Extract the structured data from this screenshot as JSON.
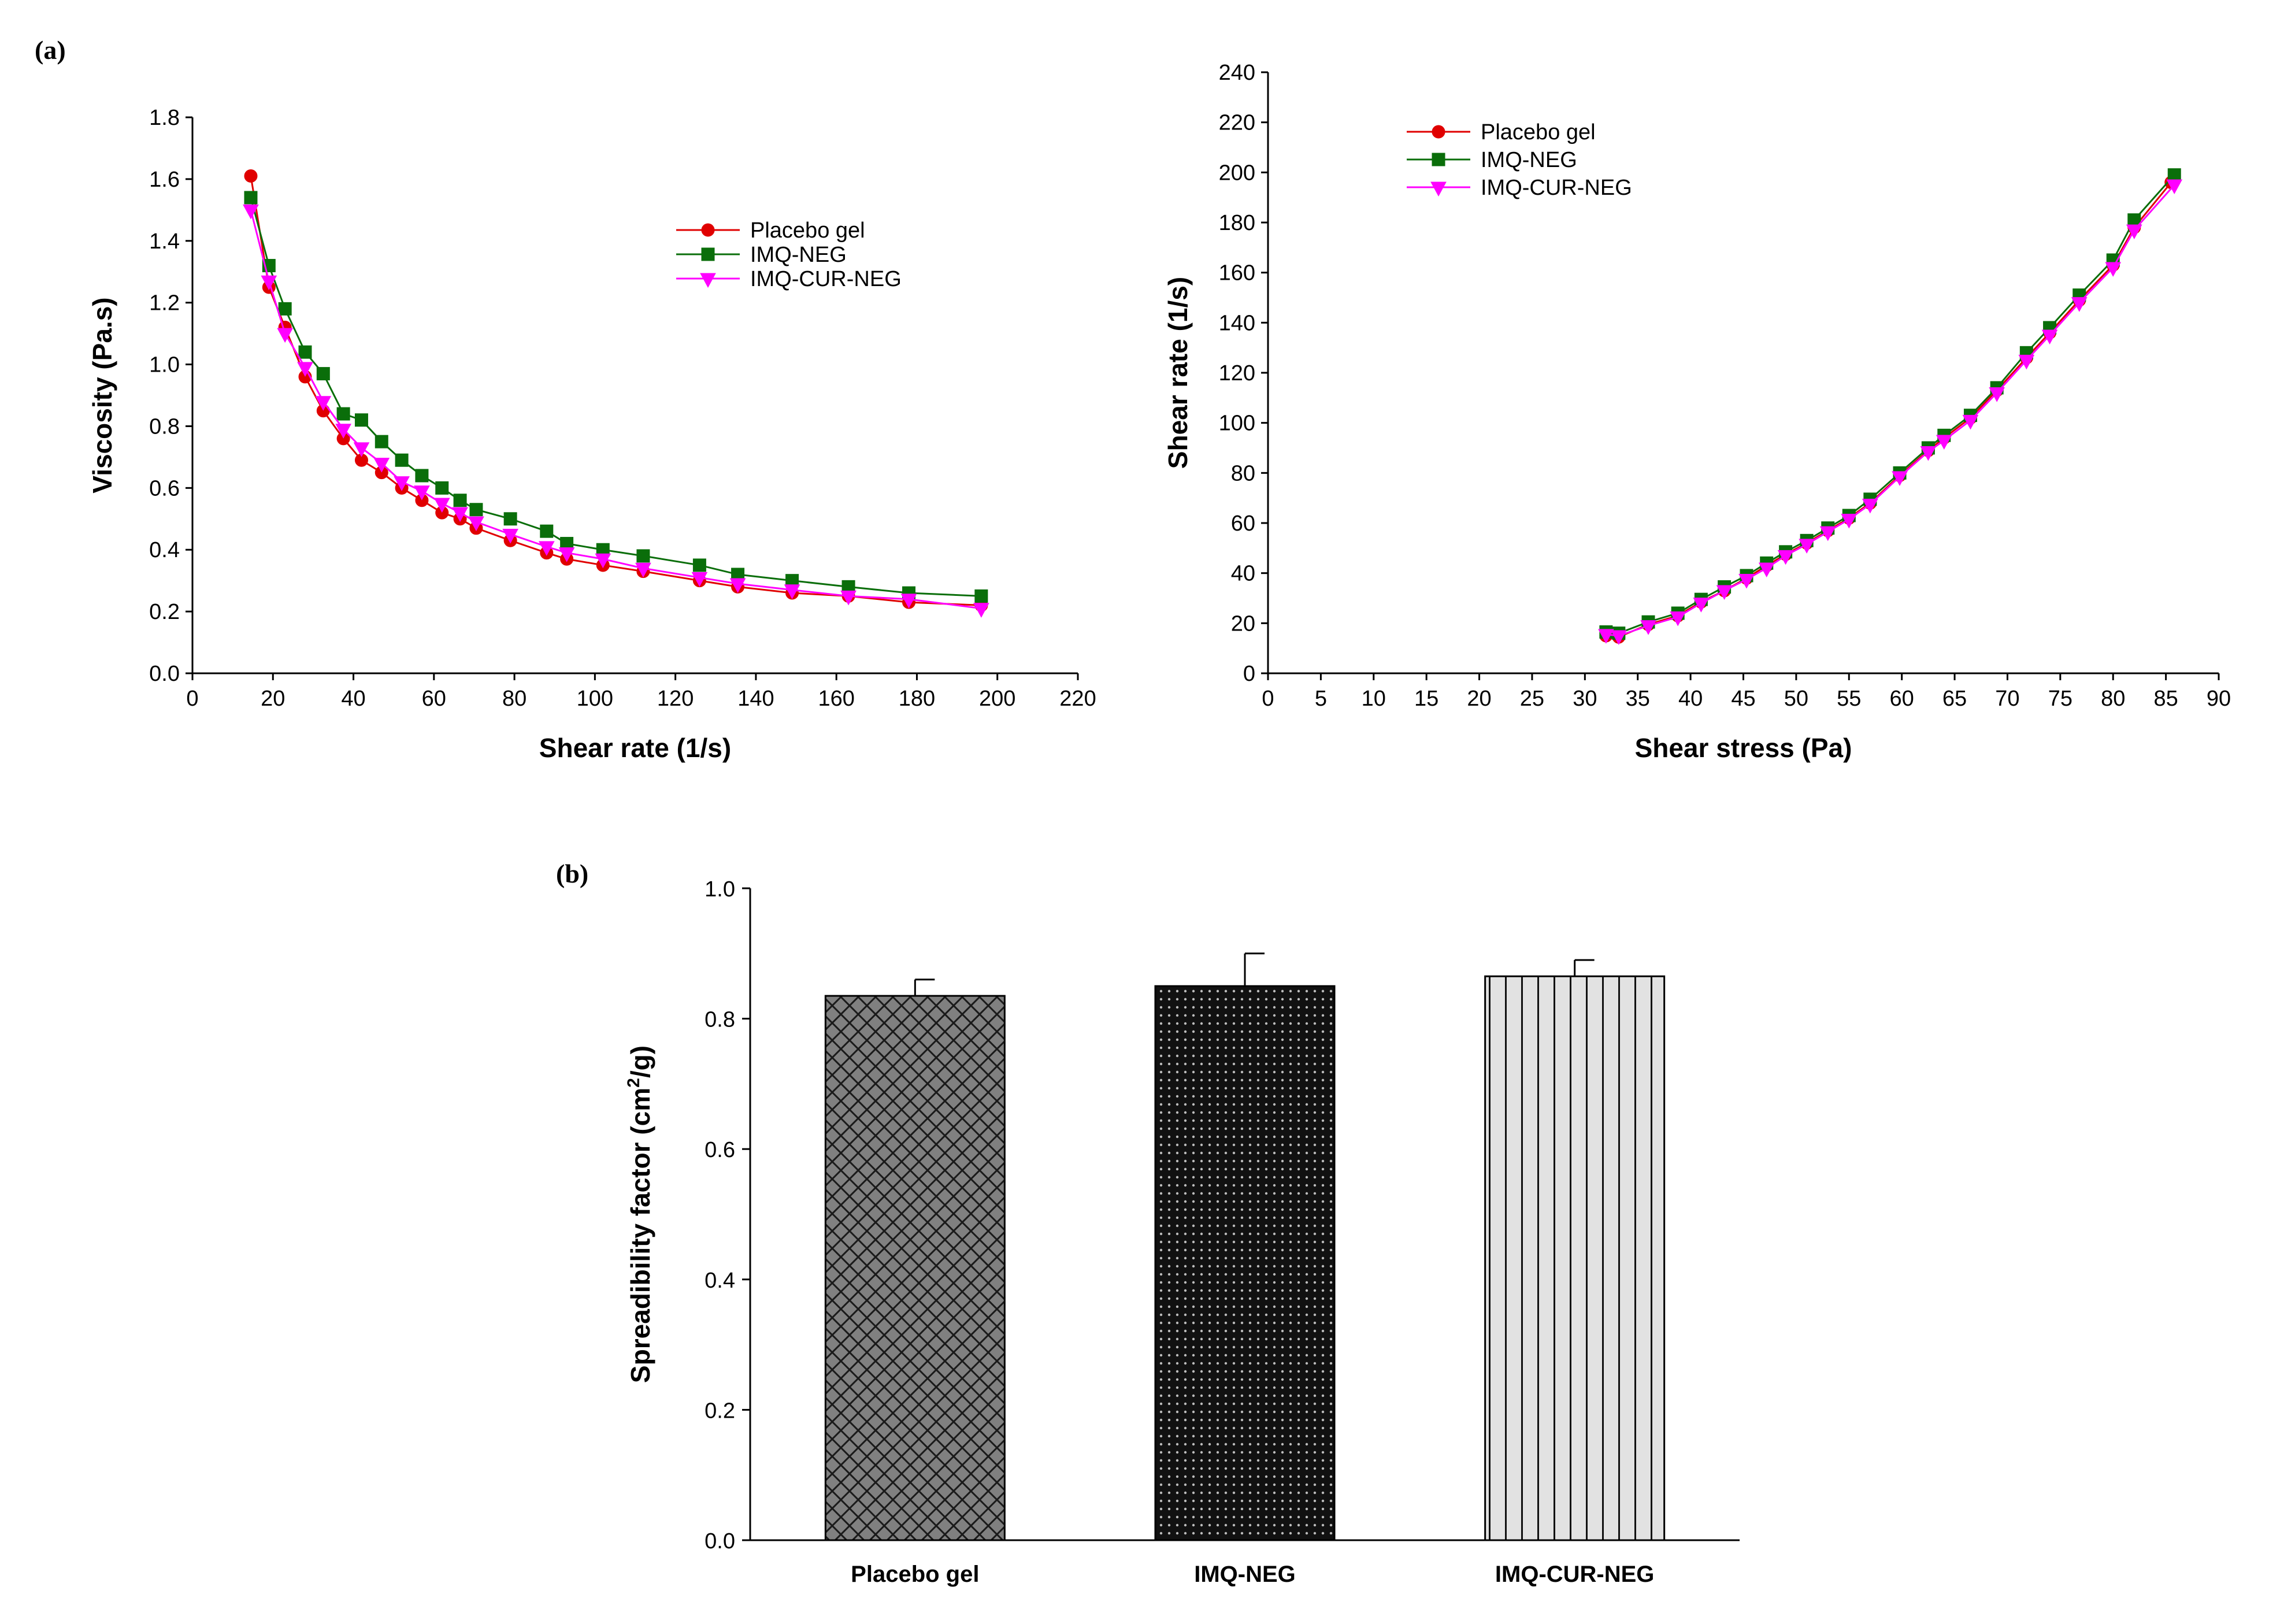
{
  "panel_labels": {
    "a": "(a)",
    "b": "(b)"
  },
  "series_colors": {
    "Placebo gel": "#e00000",
    "IMQ-NEG": "#0a6e0a",
    "IMQ-CUR-NEG": "#ff00ff"
  },
  "chart_data": [
    {
      "id": "viscosity",
      "type": "line",
      "title": "",
      "xlabel": "Shear rate (1/s)",
      "ylabel": "Viscosity (Pa.s)",
      "xlim": [
        0,
        220
      ],
      "ylim": [
        0.0,
        1.8
      ],
      "xticks": [
        0,
        20,
        40,
        60,
        80,
        100,
        120,
        140,
        160,
        180,
        200,
        220
      ],
      "yticks": [
        0.0,
        0.2,
        0.4,
        0.6,
        0.8,
        1.0,
        1.2,
        1.4,
        1.6,
        1.8
      ],
      "ytick_labels": [
        "0.0",
        "0.2",
        "0.4",
        "0.6",
        "0.8",
        "1.0",
        "1.2",
        "1.4",
        "1.6",
        "1.8"
      ],
      "legend_position": "upper-right",
      "series": [
        {
          "name": "Placebo gel",
          "label": " Placebo gel",
          "marker": "circle",
          "color": "#e00000",
          "x": [
            14.5,
            19,
            23,
            28,
            32.5,
            37.5,
            42,
            47,
            52,
            57,
            62,
            66.5,
            70.5,
            79,
            88,
            93,
            102,
            112,
            126,
            135.5,
            149,
            163,
            178,
            196
          ],
          "y": [
            1.61,
            1.25,
            1.12,
            0.96,
            0.85,
            0.76,
            0.69,
            0.65,
            0.6,
            0.56,
            0.52,
            0.5,
            0.47,
            0.43,
            0.39,
            0.37,
            0.35,
            0.33,
            0.3,
            0.28,
            0.26,
            0.25,
            0.23,
            0.22
          ]
        },
        {
          "name": "IMQ-NEG",
          "label": "IMQ-NEG",
          "marker": "square",
          "color": "#0a6e0a",
          "x": [
            14.5,
            19,
            23,
            28,
            32.5,
            37.5,
            42,
            47,
            52,
            57,
            62,
            66.5,
            70.5,
            79,
            88,
            93,
            102,
            112,
            126,
            135.5,
            149,
            163,
            178,
            196
          ],
          "y": [
            1.54,
            1.32,
            1.18,
            1.04,
            0.97,
            0.84,
            0.82,
            0.75,
            0.69,
            0.64,
            0.6,
            0.56,
            0.53,
            0.5,
            0.46,
            0.42,
            0.4,
            0.38,
            0.35,
            0.32,
            0.3,
            0.28,
            0.26,
            0.25
          ]
        },
        {
          "name": "IMQ-CUR-NEG",
          "label": "IMQ-CUR-NEG",
          "marker": "triangle-down",
          "color": "#ff00ff",
          "x": [
            14.5,
            19,
            23,
            28,
            32.5,
            37.5,
            42,
            47,
            52,
            57,
            62,
            66.5,
            70.5,
            79,
            88,
            93,
            102,
            112,
            126,
            135.5,
            149,
            163,
            178,
            196
          ],
          "y": [
            1.5,
            1.27,
            1.1,
            0.99,
            0.88,
            0.79,
            0.73,
            0.68,
            0.62,
            0.59,
            0.55,
            0.52,
            0.49,
            0.45,
            0.41,
            0.39,
            0.37,
            0.34,
            0.31,
            0.29,
            0.27,
            0.25,
            0.24,
            0.21
          ]
        }
      ]
    },
    {
      "id": "flow",
      "type": "line",
      "title": "",
      "xlabel": "Shear stress (Pa)",
      "ylabel": "Shear rate (1/s)",
      "xlim": [
        0,
        90
      ],
      "ylim": [
        0,
        240
      ],
      "xticks": [
        0,
        5,
        10,
        15,
        20,
        25,
        30,
        35,
        40,
        45,
        50,
        55,
        60,
        65,
        70,
        75,
        80,
        85,
        90
      ],
      "yticks": [
        0,
        20,
        40,
        60,
        80,
        100,
        120,
        140,
        160,
        180,
        200,
        220,
        240
      ],
      "ytick_labels": [
        "0",
        "20",
        "40",
        "60",
        "80",
        "100",
        "120",
        "140",
        "160",
        "180",
        "200",
        "220",
        "240"
      ],
      "legend_position": "upper-left",
      "series": [
        {
          "name": "Placebo gel",
          "label": "Placebo gel",
          "marker": "circle",
          "color": "#e00000",
          "x": [
            32,
            33.2,
            36,
            38.8,
            41,
            43.2,
            45.3,
            47.2,
            49,
            51,
            53,
            55,
            57,
            59.8,
            62.5,
            64,
            66.5,
            69,
            71.8,
            74,
            76.8,
            80,
            82,
            85.5
          ],
          "y": [
            15,
            14.5,
            19.5,
            23,
            28.5,
            33,
            38,
            43,
            47.5,
            52,
            57,
            62,
            68,
            79,
            89,
            94,
            102,
            113,
            126,
            136,
            149,
            163,
            178,
            196
          ]
        },
        {
          "name": "IMQ-NEG",
          "label": "IMQ-NEG",
          "marker": "square",
          "color": "#0a6e0a",
          "x": [
            32,
            33.2,
            36,
            38.8,
            41,
            43.2,
            45.3,
            47.2,
            49,
            51,
            53,
            55,
            57,
            59.8,
            62.5,
            64,
            66.5,
            69,
            71.8,
            74,
            76.8,
            80,
            82,
            85.8
          ],
          "y": [
            16.5,
            16,
            20.5,
            24,
            29.5,
            34.5,
            39,
            44,
            48.5,
            53,
            58,
            63,
            69.5,
            80,
            90,
            95,
            103,
            114,
            128,
            138,
            151,
            165,
            181,
            199
          ]
        },
        {
          "name": "IMQ-CUR-NEG",
          "label": "IMQ-CUR-NEG",
          "marker": "triangle-down",
          "color": "#ff00ff",
          "x": [
            32,
            33.2,
            36,
            38.8,
            41,
            43.2,
            45.3,
            47.2,
            49,
            51,
            53,
            55,
            57,
            59.8,
            62.5,
            64,
            66.5,
            69,
            71.8,
            74,
            76.8,
            80,
            82,
            85.8
          ],
          "y": [
            15.5,
            15,
            19,
            22.5,
            28,
            33,
            37.5,
            42,
            47,
            51.5,
            56.5,
            61.5,
            67.5,
            78.5,
            88.5,
            93,
            101,
            112,
            125,
            135,
            148,
            162,
            177,
            195
          ]
        }
      ]
    },
    {
      "id": "spreadability",
      "type": "bar",
      "title": "",
      "xlabel": "",
      "ylabel_main": "Spreadibility factor (cm",
      "ylabel_sup": "2",
      "ylabel_end": "/g)",
      "ylim": [
        0.0,
        1.0
      ],
      "yticks": [
        0.0,
        0.2,
        0.4,
        0.6,
        0.8,
        1.0
      ],
      "ytick_labels": [
        "0.0",
        "0.2",
        "0.4",
        "0.6",
        "0.8",
        "1.0"
      ],
      "categories": [
        "Placebo gel",
        "IMQ-NEG",
        "IMQ-CUR-NEG"
      ],
      "values": [
        0.835,
        0.85,
        0.865
      ],
      "errors": [
        0.025,
        0.05,
        0.025
      ],
      "patterns": [
        "crosshatch",
        "dots",
        "vertical-lines"
      ]
    }
  ]
}
